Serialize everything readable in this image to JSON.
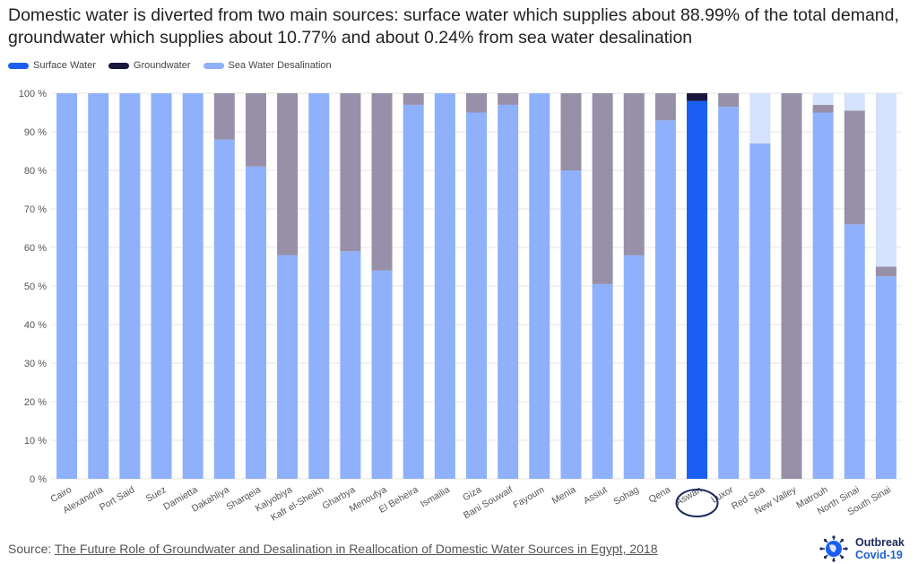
{
  "title": "Domestic water is diverted from two main sources: surface water which supplies about 88.99% of the total demand, groundwater which supplies about 10.77% and about 0.24% from sea water desalination",
  "source": {
    "label": "Source: ",
    "link_text": "The Future Role of Groundwater and Desalination in Reallocation of Domestic Water Sources in Egypt, 2018"
  },
  "brand": {
    "line1": "Outbreak",
    "line2": "Covid-19"
  },
  "colors": {
    "surface": "#8fb0fb",
    "ground": "#9790a8",
    "desal": "#d6e1fb",
    "highlight_surface": "#1a5ff2",
    "highlight_ground": "#1a1840",
    "legend_surface": "#1a5ff2",
    "legend_ground": "#1a1840",
    "legend_desal": "#8fb0fb",
    "circle": "#1a2a5c"
  },
  "chart_data": {
    "type": "bar",
    "stacked": true,
    "categories": [
      "Cairo",
      "Alexandria",
      "Port Said",
      "Suez",
      "Damietta",
      "Dakahliya",
      "Sharqeia",
      "Kalyobiya",
      "Kafr el-Sheikh",
      "Gharbya",
      "Menoufya",
      "El Beheira",
      "Ismailia",
      "Giza",
      "Bani Souwaif",
      "Fayoum",
      "Menia",
      "Assiut",
      "Sohag",
      "Qena",
      "Aswan",
      "Luxor",
      "Red Sea",
      "New Valley",
      "Matrouh",
      "North Sinai",
      "South Sinai"
    ],
    "series": [
      {
        "name": "Surface Water",
        "values": [
          100,
          100,
          100,
          100,
          100,
          88,
          81,
          58,
          100,
          59,
          54,
          97,
          100,
          95,
          97,
          100,
          80,
          50.5,
          58,
          93,
          98,
          96.5,
          87,
          0,
          95,
          66,
          52.5
        ]
      },
      {
        "name": "Groundwater",
        "values": [
          0,
          0,
          0,
          0,
          0,
          12,
          19,
          42,
          0,
          41,
          46,
          3,
          0,
          5,
          3,
          0,
          20,
          49.5,
          42,
          7,
          2,
          3.5,
          0,
          100,
          2,
          29.5,
          2.5
        ]
      },
      {
        "name": "Sea Water Desalination",
        "values": [
          0,
          0,
          0,
          0,
          0,
          0,
          0,
          0,
          0,
          0,
          0,
          0,
          0,
          0,
          0,
          0,
          0,
          0,
          0,
          0,
          0,
          0,
          13,
          0,
          3,
          4.5,
          45
        ]
      }
    ],
    "highlight": "Aswan",
    "y_ticks": [
      "0 %",
      "10 %",
      "20 %",
      "30 %",
      "40 %",
      "50 %",
      "60 %",
      "70 %",
      "80 %",
      "90 %",
      "100 %"
    ],
    "ylim": [
      0,
      100
    ],
    "grid": true,
    "legend_position": "top-left"
  }
}
